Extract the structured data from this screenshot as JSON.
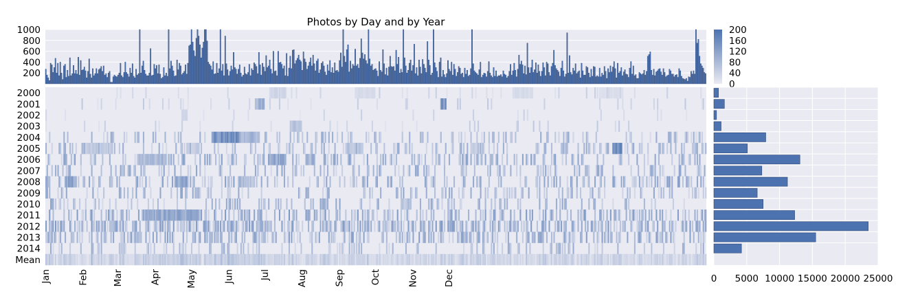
{
  "chart_data": [
    {
      "type": "bar",
      "title": "Photos by Day and by Year",
      "xlabel": "",
      "ylabel": "",
      "ylim": [
        0,
        1000
      ],
      "ytick_labels": [
        "200",
        "400",
        "600",
        "800",
        "1000"
      ],
      "series": [
        {
          "values": [
            270,
            160,
            110,
            60,
            380,
            350,
            210,
            300,
            470,
            200,
            380,
            150,
            400,
            200,
            80,
            330,
            360,
            120,
            250,
            140,
            480,
            150,
            190,
            340,
            190,
            250,
            180,
            490,
            160,
            430,
            250,
            260,
            310,
            240,
            110,
            230,
            460,
            180,
            110,
            280,
            150,
            190,
            280,
            190,
            260,
            280,
            320,
            230,
            330,
            160,
            190,
            120,
            200,
            230,
            30,
            30,
            130,
            160,
            140,
            130,
            160,
            200,
            380,
            150,
            120,
            210,
            400,
            210,
            180,
            130,
            290,
            200,
            370,
            140,
            110,
            270,
            160,
            190,
            1000,
            200,
            330,
            420,
            250,
            180,
            150,
            150,
            200,
            650,
            150,
            160,
            360,
            280,
            340,
            190,
            350,
            180,
            100,
            120,
            300,
            150,
            200,
            140,
            1000,
            280,
            420,
            330,
            240,
            140,
            150,
            440,
            260,
            380,
            330,
            170,
            200,
            230,
            350,
            180,
            380,
            700,
            720,
            1000,
            770,
            610,
            510,
            840,
            1000,
            880,
            720,
            480,
            660,
            770,
            1000,
            1000,
            790,
            400,
            360,
            330,
            260,
            410,
            180,
            190,
            380,
            200,
            280,
            1000,
            240,
            360,
            150,
            880,
            370,
            260,
            150,
            230,
            330,
            260,
            580,
            300,
            270,
            180,
            270,
            350,
            200,
            130,
            160,
            310,
            190,
            170,
            210,
            360,
            150,
            280,
            250,
            390,
            360,
            320,
            190,
            580,
            350,
            160,
            380,
            310,
            230,
            520,
            300,
            330,
            440,
            270,
            190,
            600,
            230,
            240,
            150,
            600,
            390,
            400,
            360,
            280,
            330,
            150,
            560,
            140,
            290,
            510,
            280,
            620,
            630,
            370,
            430,
            470,
            530,
            440,
            410,
            250,
            590,
            460,
            400,
            270,
            330,
            400,
            480,
            330,
            530,
            370,
            240,
            420,
            460,
            200,
            260,
            380,
            410,
            330,
            220,
            160,
            350,
            240,
            430,
            210,
            300,
            200,
            390,
            240,
            250,
            220,
            430,
            570,
            310,
            1000,
            510,
            400,
            630,
            720,
            220,
            420,
            280,
            360,
            330,
            640,
            330,
            360,
            290,
            470,
            830,
            570,
            460,
            540,
            430,
            370,
            1000,
            460,
            330,
            360,
            250,
            270,
            280,
            240,
            140,
            410,
            250,
            220,
            630,
            370,
            170,
            290,
            150,
            310,
            510,
            320,
            310,
            320,
            240,
            620,
            360,
            490,
            200,
            270,
            210,
            1000,
            480,
            330,
            200,
            250,
            380,
            440,
            240,
            340,
            730,
            190,
            300,
            150,
            440,
            310,
            190,
            450,
            360,
            290,
            210,
            780,
            440,
            340,
            160,
            200,
            1000,
            390,
            300,
            230,
            120,
            400,
            480,
            130,
            250,
            170,
            120,
            190,
            430,
            270,
            230,
            400,
            160,
            360,
            270,
            140,
            210,
            320,
            290,
            180,
            200,
            120,
            290,
            180,
            250,
            140,
            160,
            280,
            1000,
            370,
            240,
            210,
            190,
            160,
            260,
            400,
            120,
            160,
            200,
            190,
            130,
            230,
            410,
            200,
            150,
            120,
            300,
            140,
            240,
            130,
            150,
            150,
            170,
            130,
            240,
            180,
            160,
            110,
            140,
            230,
            360,
            160,
            240,
            380,
            250,
            130,
            270,
            530,
            360,
            420,
            350,
            190,
            330,
            170,
            750,
            300,
            200,
            300,
            440,
            210,
            260,
            390,
            200,
            350,
            230,
            140,
            230,
            390,
            300,
            150,
            400,
            370,
            210,
            150,
            320,
            380,
            620,
            340,
            280,
            250,
            220,
            140,
            290,
            420,
            240,
            130,
            180,
            940,
            200,
            520,
            210,
            170,
            290,
            240,
            370,
            190,
            220,
            240,
            110,
            380,
            240,
            160,
            160,
            320,
            300,
            200,
            120,
            270,
            140,
            320,
            310,
            130,
            150,
            130,
            290,
            130,
            200,
            160,
            320,
            230,
            100,
            280,
            210,
            330,
            220,
            310,
            410,
            280,
            110,
            380,
            200,
            230,
            300,
            150,
            220,
            260,
            180,
            170,
            120,
            290,
            410,
            180,
            330,
            150,
            170,
            100,
            100,
            210,
            190,
            170,
            190,
            250,
            160,
            230,
            510,
            540,
            590,
            250,
            160,
            270,
            150,
            220,
            240,
            270,
            280,
            220,
            160,
            280,
            210,
            130,
            150,
            160,
            270,
            240,
            180,
            180,
            130,
            160,
            170,
            120,
            280,
            240,
            140,
            100,
            90,
            80,
            100,
            50,
            130,
            120,
            230,
            180,
            240,
            180,
            1000,
            750,
            820,
            510,
            370,
            330,
            290,
            210,
            190
          ]
        }
      ]
    },
    {
      "type": "heatmap",
      "title": "",
      "rows": [
        "2000",
        "2001",
        "2002",
        "2003",
        "2004",
        "2005",
        "2006",
        "2007",
        "2008",
        "2009",
        "2010",
        "2011",
        "2012",
        "2013",
        "2014",
        "Mean"
      ],
      "xtick_labels": [
        "Jan",
        "Feb",
        "Mar",
        "Apr",
        "May",
        "Jun",
        "Jul",
        "Aug",
        "Sep",
        "Oct",
        "Nov",
        "Dec"
      ],
      "days_per_month": [
        31,
        29,
        31,
        30,
        31,
        30,
        31,
        31,
        30,
        31,
        30,
        31
      ],
      "colorbar": {
        "vmin": 0,
        "vmax": 200,
        "tick_labels": [
          "0",
          "40",
          "80",
          "120",
          "160",
          "200"
        ]
      },
      "colors": {
        "low": "#eaeaf2",
        "high": "#4c72b0"
      },
      "rows_data": [
        {
          "density": 0.08,
          "level": 0.2,
          "clusters": [
            [
              186,
              200,
              0.2
            ],
            [
              258,
              274,
              0.15
            ],
            [
              388,
              405,
              0.15
            ],
            [
              460,
              480,
              0.12
            ]
          ]
        },
        {
          "density": 0.05,
          "level": 0.25,
          "clusters": [
            [
              174,
              182,
              0.6
            ],
            [
              328,
              333,
              1.0
            ]
          ]
        },
        {
          "density": 0.03,
          "level": 0.2,
          "clusters": [
            [
              113,
              118,
              0.2
            ]
          ]
        },
        {
          "density": 0.06,
          "level": 0.25,
          "clusters": [
            [
              203,
              212,
              0.4
            ]
          ]
        },
        {
          "density": 0.22,
          "level": 0.45,
          "clusters": [
            [
              138,
              162,
              0.9
            ],
            [
              162,
              172,
              0.55
            ],
            [
              170,
              178,
              0.45
            ]
          ]
        },
        {
          "density": 0.25,
          "level": 0.45,
          "clusters": [
            [
              30,
              56,
              0.35
            ],
            [
              117,
              128,
              0.3
            ],
            [
              250,
              264,
              0.4
            ],
            [
              353,
              363,
              0.35
            ],
            [
              428,
              434,
              0.45
            ],
            [
              471,
              479,
              0.9
            ]
          ]
        },
        {
          "density": 0.28,
          "level": 0.55,
          "clusters": [
            [
              77,
              101,
              0.5
            ],
            [
              185,
              200,
              0.7
            ],
            [
              216,
              223,
              0.55
            ]
          ]
        },
        {
          "density": 0.24,
          "level": 0.5,
          "clusters": []
        },
        {
          "density": 0.28,
          "level": 0.55,
          "clusters": [
            [
              0,
              4,
              0.6
            ],
            [
              16,
              25,
              0.75
            ],
            [
              108,
              118,
              0.7
            ],
            [
              162,
              174,
              0.4
            ]
          ]
        },
        {
          "density": 0.22,
          "level": 0.5,
          "clusters": [
            [
              0,
              2,
              0.6
            ],
            [
              124,
              128,
              0.5
            ]
          ]
        },
        {
          "density": 0.22,
          "level": 0.5,
          "clusters": [
            [
              228,
              235,
              0.5
            ],
            [
              297,
              304,
              0.35
            ]
          ]
        },
        {
          "density": 0.38,
          "level": 0.6,
          "clusters": [
            [
              82,
              128,
              0.65
            ]
          ]
        },
        {
          "density": 0.55,
          "level": 0.6,
          "clusters": []
        },
        {
          "density": 0.45,
          "level": 0.55,
          "clusters": []
        },
        {
          "density": 0.2,
          "level": 0.45,
          "clusters": []
        },
        {
          "density": 0.0,
          "level": 0.0,
          "mean": true,
          "clusters": []
        }
      ]
    },
    {
      "type": "bar",
      "orientation": "horizontal",
      "title": "",
      "categories": [
        "2000",
        "2001",
        "2002",
        "2003",
        "2004",
        "2005",
        "2006",
        "2007",
        "2008",
        "2009",
        "2010",
        "2011",
        "2012",
        "2013",
        "2014"
      ],
      "values": [
        700,
        1600,
        400,
        1100,
        7900,
        5100,
        13100,
        7300,
        11200,
        6600,
        7500,
        12300,
        23500,
        15500,
        4200
      ],
      "xlim": [
        0,
        25000
      ],
      "xtick_labels": [
        "0",
        "5000",
        "10000",
        "15000",
        "20000",
        "25000"
      ]
    }
  ]
}
